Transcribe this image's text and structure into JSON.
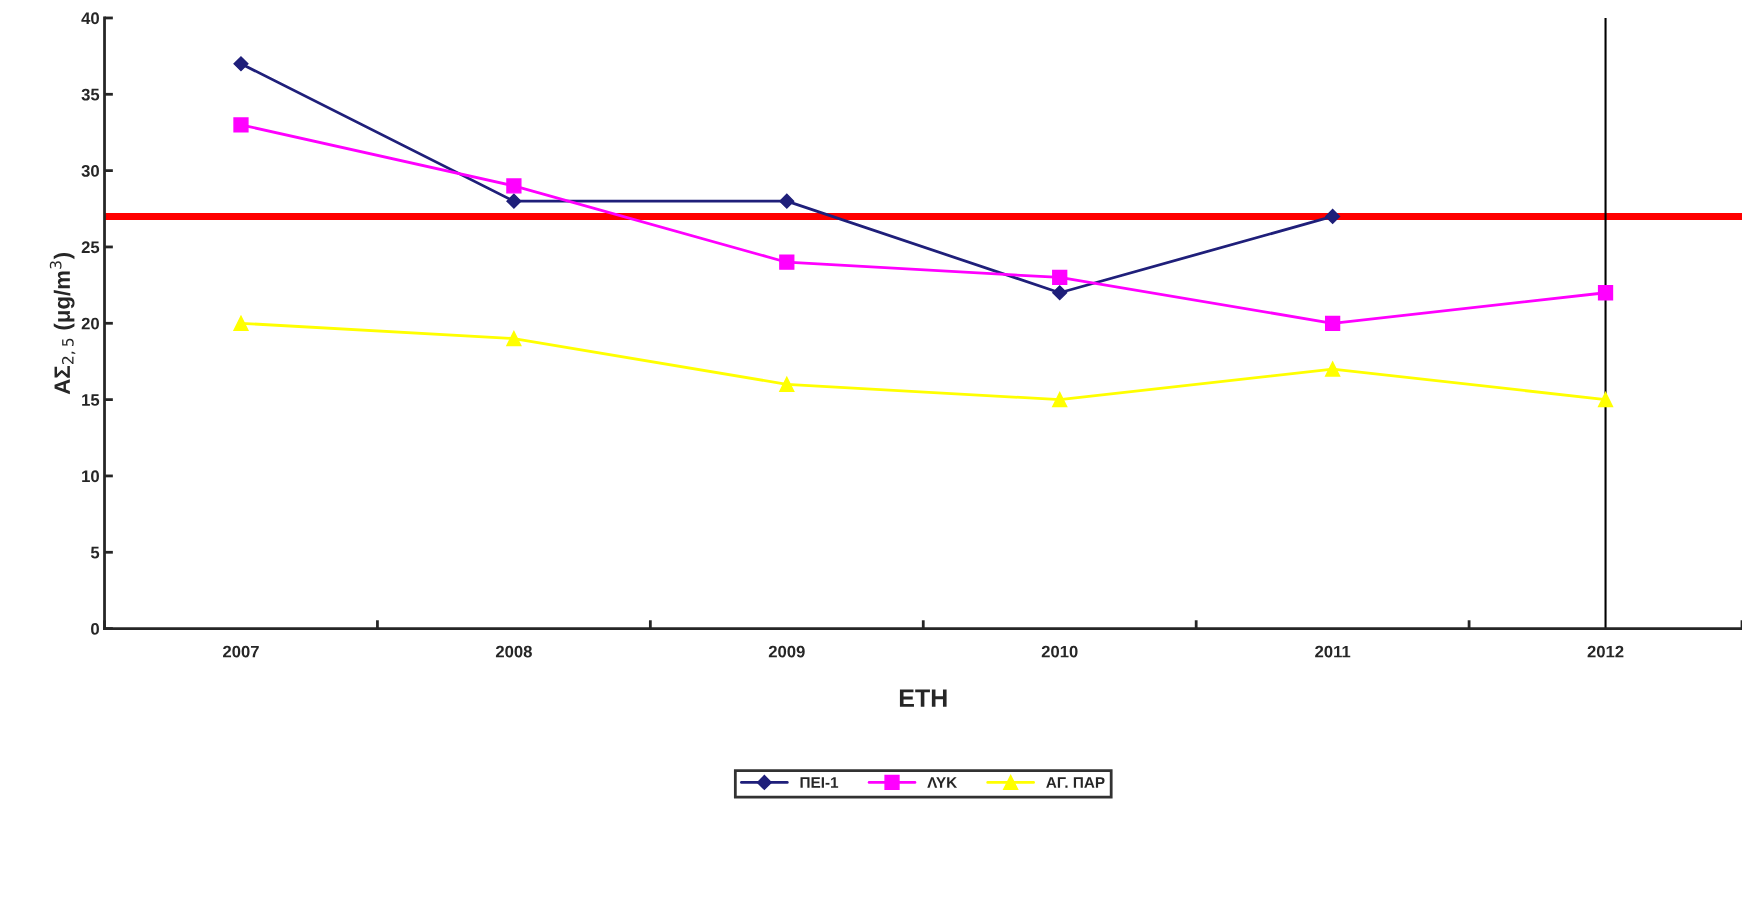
{
  "chart_data": {
    "type": "line",
    "xlabel": "ΕΤΗ",
    "ylabel": "ΑΣ$_{2,5}$ (μg/m$^{3}$)",
    "categories": [
      "2007",
      "2008",
      "2009",
      "2010",
      "2011",
      "2012"
    ],
    "series": [
      {
        "name": "ΠΕΙ-1",
        "color": "#1f1f7a",
        "marker": "diamond",
        "values": [
          37,
          28,
          28,
          22,
          27,
          null
        ]
      },
      {
        "name": "ΛΥΚ",
        "color": "#ff00ff",
        "marker": "square",
        "values": [
          33,
          29,
          24,
          23,
          20,
          22
        ]
      },
      {
        "name": "ΑΓ. ΠΑΡ",
        "color": "#ffff00",
        "marker": "triangle",
        "values": [
          20,
          19,
          16,
          15,
          17,
          15
        ]
      }
    ],
    "ylim": [
      0,
      40
    ],
    "yticks": [
      0,
      5,
      10,
      15,
      20,
      25,
      30,
      35,
      40
    ],
    "ref_lines": [
      {
        "axis": "y",
        "value": 27,
        "color": "#ff0000"
      },
      {
        "axis": "x",
        "value": "2012",
        "color": "#000000"
      }
    ],
    "grid": false,
    "legend": "bottom"
  }
}
